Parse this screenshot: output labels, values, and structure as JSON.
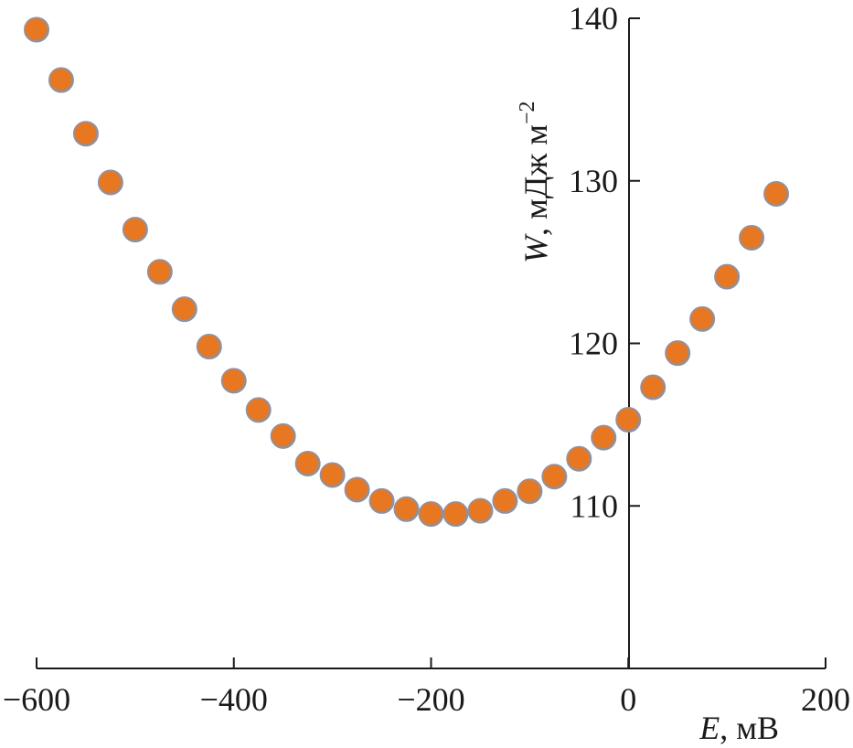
{
  "chart_data": {
    "type": "scatter",
    "title": "",
    "xlabel": {
      "var": "E",
      "unit": ", мВ"
    },
    "ylabel": {
      "var": "W",
      "unit": ", мДж м",
      "sup": "−2"
    },
    "xlim": [
      -600,
      200
    ],
    "ylim": [
      100,
      140
    ],
    "xticks": [
      {
        "value": -600,
        "label": "−600"
      },
      {
        "value": -400,
        "label": "−400"
      },
      {
        "value": -200,
        "label": "−200"
      },
      {
        "value": 0,
        "label": "0"
      },
      {
        "value": 200,
        "label": "200"
      }
    ],
    "yticks": [
      {
        "value": 110,
        "label": "110"
      },
      {
        "value": 120,
        "label": "120"
      },
      {
        "value": 130,
        "label": "130"
      },
      {
        "value": 140,
        "label": "140"
      }
    ],
    "grid": false,
    "colors": {
      "marker_fill": "#e87722",
      "marker_stroke": "#8a93a8",
      "axis": "#1a1a1a"
    },
    "series": [
      {
        "points": [
          [
            -600,
            139.3
          ],
          [
            -575,
            136.2
          ],
          [
            -550,
            132.9
          ],
          [
            -525,
            129.9
          ],
          [
            -500,
            127.0
          ],
          [
            -475,
            124.4
          ],
          [
            -450,
            122.1
          ],
          [
            -425,
            119.8
          ],
          [
            -400,
            117.7
          ],
          [
            -375,
            115.9
          ],
          [
            -350,
            114.3
          ],
          [
            -325,
            112.6
          ],
          [
            -300,
            111.9
          ],
          [
            -275,
            111.0
          ],
          [
            -250,
            110.3
          ],
          [
            -225,
            109.8
          ],
          [
            -200,
            109.5
          ],
          [
            -175,
            109.5
          ],
          [
            -150,
            109.7
          ],
          [
            -125,
            110.3
          ],
          [
            -100,
            110.9
          ],
          [
            -75,
            111.8
          ],
          [
            -50,
            112.9
          ],
          [
            -25,
            114.2
          ],
          [
            0,
            115.3
          ],
          [
            25,
            117.3
          ],
          [
            50,
            119.4
          ],
          [
            75,
            121.5
          ],
          [
            100,
            124.1
          ],
          [
            125,
            126.5
          ],
          [
            150,
            129.2
          ]
        ]
      }
    ]
  }
}
